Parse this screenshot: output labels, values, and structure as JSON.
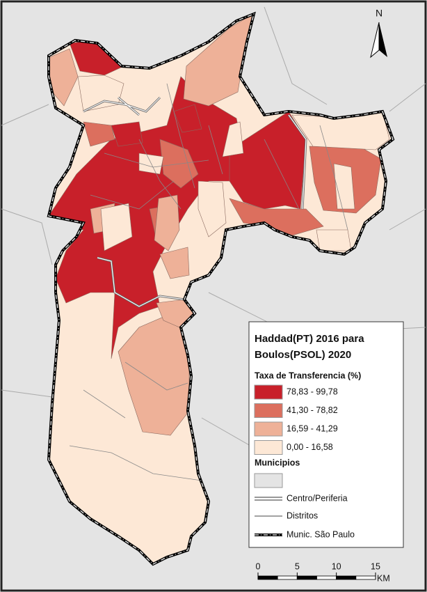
{
  "north_arrow": "N",
  "legend": {
    "title_lines": [
      "Haddad(PT) 2016 para",
      "Boulos(PSOL) 2020"
    ],
    "class_title": "Taxa de Transferencia (%)",
    "classes": [
      {
        "label": "78,83 - 99,78",
        "color": "#c8202a"
      },
      {
        "label": "41,30 - 78,82",
        "color": "#dc6f5e"
      },
      {
        "label": "16,59 - 41,29",
        "color": "#eeb198"
      },
      {
        "label": "0,00 - 16,58",
        "color": "#fde8d6"
      }
    ],
    "municipios": {
      "label": "Municipios",
      "color": "#e4e4e4"
    },
    "lines": [
      {
        "label": "Centro/Periferia"
      },
      {
        "label": "Distritos"
      },
      {
        "label": "Munic. São Paulo"
      }
    ]
  },
  "scale_bar": {
    "ticks": [
      0,
      5,
      10,
      15
    ],
    "unit": "KM"
  }
}
